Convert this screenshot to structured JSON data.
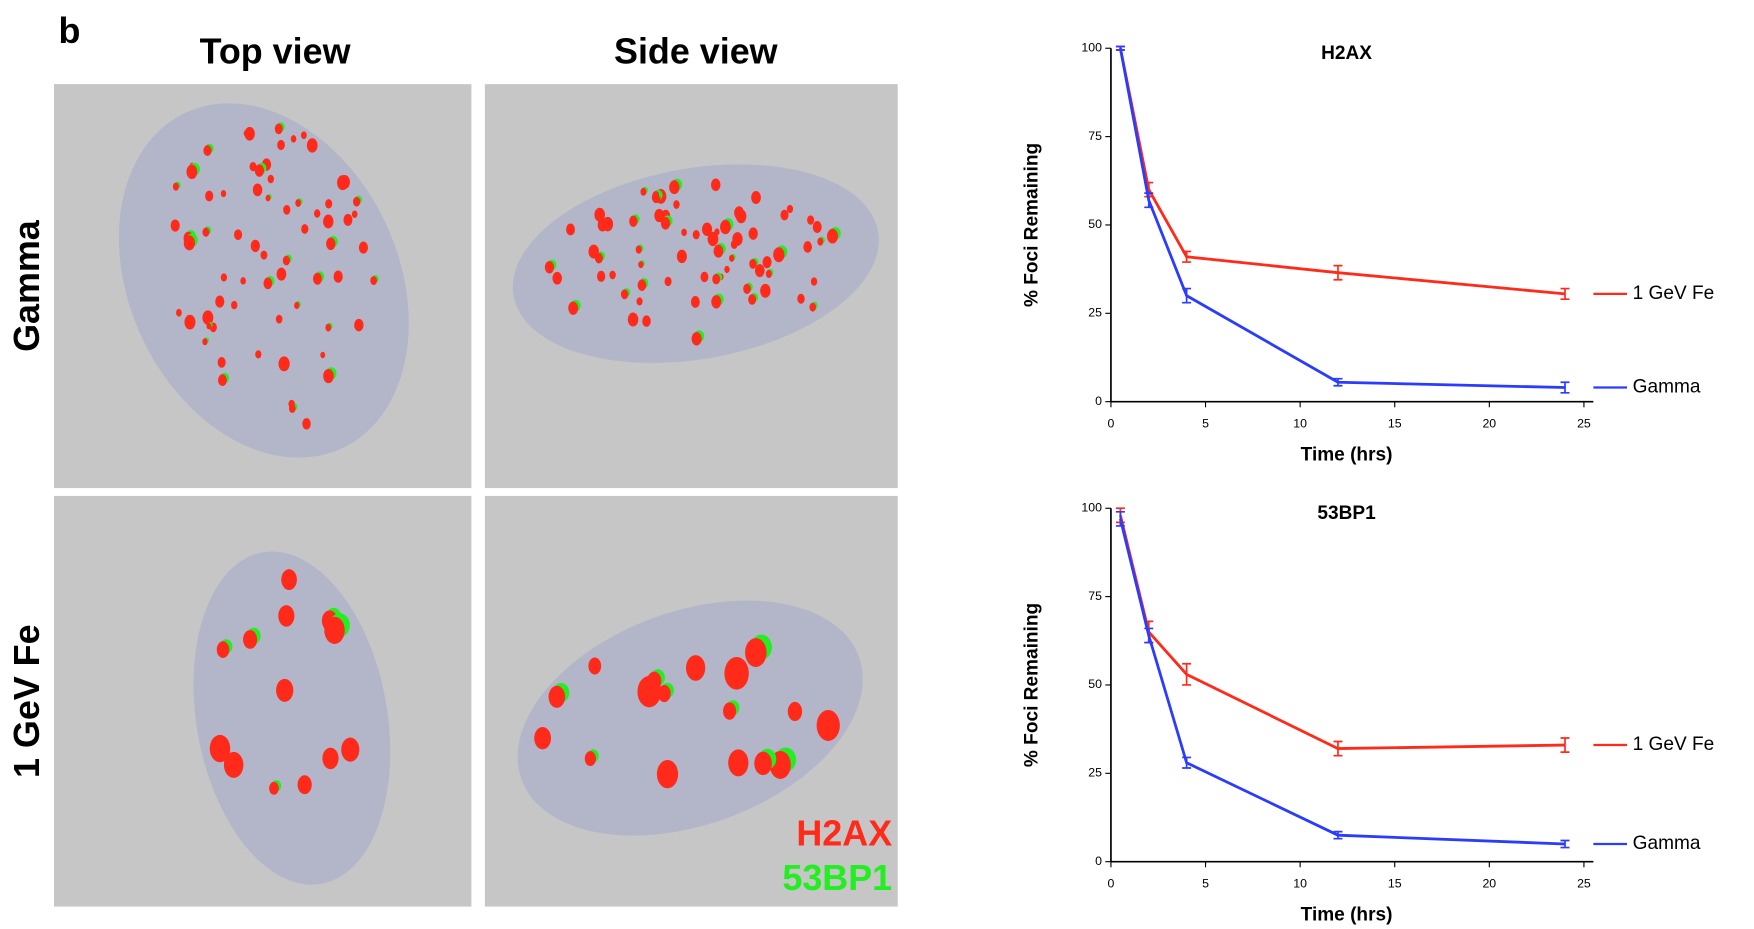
{
  "panel": {
    "label": "b",
    "columns": [
      "Top view",
      "Side view"
    ],
    "rows": [
      "Gamma",
      "1 GeV Fe"
    ],
    "legend": [
      {
        "name": "H2AX",
        "color": "#ff2a1a"
      },
      {
        "name": "53BP1",
        "color": "#22ee22"
      }
    ]
  },
  "chart_data": [
    {
      "type": "line",
      "title": "H2AX",
      "x_label": "Time (hrs)",
      "y_label": "% Foci Remaining",
      "x": [
        0.5,
        2,
        4,
        12,
        24
      ],
      "series": [
        {
          "name": "1 GeV Fe",
          "color": "#ff2a1a",
          "values": [
            100,
            60,
            41,
            36.5,
            30.5
          ],
          "errors": [
            0.5,
            2,
            1.5,
            2,
            1.5
          ]
        },
        {
          "name": "Gamma",
          "color": "#2a3cff",
          "values": [
            100,
            57,
            30,
            5.5,
            4
          ],
          "errors": [
            0.5,
            2,
            2,
            1,
            1.5
          ]
        }
      ],
      "xlim": [
        0,
        25.5
      ],
      "xticks": [
        0,
        5,
        10,
        15,
        20,
        25
      ],
      "ylim": [
        0,
        100
      ],
      "yticks": [
        0,
        25,
        50,
        75,
        100
      ]
    },
    {
      "type": "line",
      "title": "53BP1",
      "x_label": "Time (hrs)",
      "y_label": "% Foci Remaining",
      "x": [
        0.5,
        2,
        4,
        12,
        24
      ],
      "series": [
        {
          "name": "1 GeV Fe",
          "color": "#ff2a1a",
          "values": [
            98,
            65,
            53,
            32,
            33
          ],
          "errors": [
            2,
            3,
            3,
            2,
            2
          ]
        },
        {
          "name": "Gamma",
          "color": "#2a3cff",
          "values": [
            97,
            64,
            28,
            7.5,
            5
          ],
          "errors": [
            2,
            2,
            1.5,
            1,
            1
          ]
        }
      ],
      "xlim": [
        0,
        25.5
      ],
      "xticks": [
        0,
        5,
        10,
        15,
        20,
        25
      ],
      "ylim": [
        0,
        100
      ],
      "yticks": [
        0,
        25,
        50,
        75,
        100
      ]
    }
  ]
}
